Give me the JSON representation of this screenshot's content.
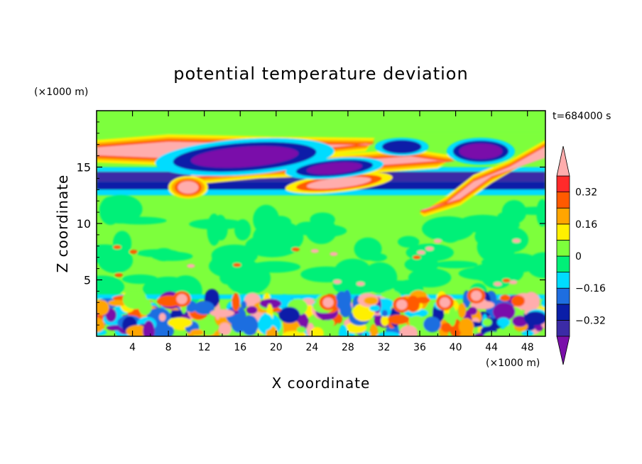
{
  "chart_data": {
    "type": "heatmap",
    "title": "potential temperature deviation",
    "xlabel": "X coordinate",
    "ylabel": "Z coordinate",
    "x_unit": "(×1000 m)",
    "y_unit": "(×1000 m)",
    "time_label": "t=684000 s",
    "xlim": [
      0,
      50
    ],
    "ylim": [
      0,
      20
    ],
    "x_ticks": [
      4,
      8,
      12,
      16,
      20,
      24,
      28,
      32,
      36,
      40,
      44,
      48
    ],
    "y_ticks": [
      5,
      10,
      15
    ],
    "colorbar": {
      "levels": [
        -0.48,
        -0.4,
        -0.32,
        -0.24,
        -0.16,
        -0.08,
        0,
        0.08,
        0.16,
        0.24,
        0.32,
        0.4
      ],
      "colors": [
        "#7a0faa",
        "#3b2ba6",
        "#0a1ea8",
        "#1e6ee0",
        "#00dcff",
        "#00f078",
        "#7dff3c",
        "#fff000",
        "#ffa500",
        "#ff5a00",
        "#ff2a2a",
        "#ffadad"
      ],
      "tick_labels": [
        "0.32",
        "0.16",
        "0",
        "−0.16",
        "−0.32"
      ],
      "tick_values": [
        0.32,
        0.16,
        0,
        -0.16,
        -0.32
      ]
    },
    "features": [
      {
        "kind": "layer",
        "z": [
          12.5,
          13.7
        ],
        "value": -0.28
      },
      {
        "kind": "layer",
        "z": [
          13.7,
          14.6
        ],
        "value": -0.4
      },
      {
        "kind": "band",
        "x": [
          0,
          50
        ],
        "z": [
          14.8,
          17.2
        ],
        "value": 0.45
      },
      {
        "kind": "band",
        "x": [
          9,
          31
        ],
        "z": [
          13.5,
          16.2
        ],
        "value": 0.45
      },
      {
        "kind": "blob",
        "x": 17,
        "z": 16.1,
        "value": -0.45
      },
      {
        "kind": "blob",
        "x": 26,
        "z": 14.3,
        "value": -0.42
      },
      {
        "kind": "blob",
        "x": 43,
        "z": 16.3,
        "value": -0.45
      },
      {
        "kind": "plume",
        "x": [
          39.5,
          49
        ],
        "z": [
          10.9,
          16.6
        ],
        "value": 0.45
      },
      {
        "kind": "boundary-layer",
        "z": [
          0,
          3.5
        ],
        "value_range": [
          -0.45,
          0.45
        ]
      }
    ]
  }
}
